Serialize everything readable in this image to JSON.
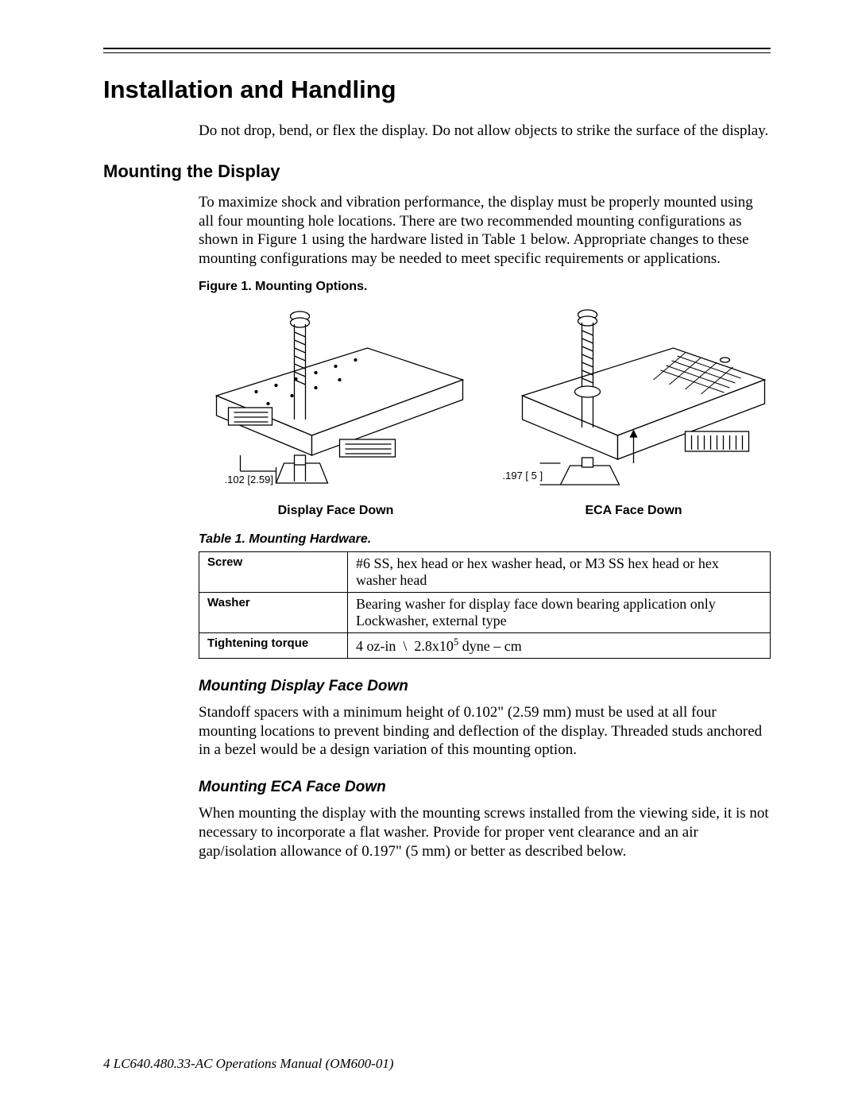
{
  "title": "Installation and Handling",
  "intro": "Do not drop, bend, or flex the display. Do not allow objects to strike the surface of the display.",
  "mounting_head": "Mounting the Display",
  "mounting_body": "To maximize shock and vibration performance, the display must be properly mounted using all four mounting hole locations. There are two recommended mounting configurations as shown in Figure 1 using the hardware listed in Table 1 below. Appropriate changes to these mounting configurations may be needed to meet specific requirements or applications.",
  "figure_caption": "Figure 1. Mounting Options.",
  "figure_left_label": "Display Face Down",
  "figure_right_label": "ECA Face Down",
  "figure_left_dim": ".102 [2.59]",
  "figure_right_dim": ".197 [ 5 ]",
  "table_caption": "Table 1. Mounting Hardware.",
  "table": {
    "rows": [
      {
        "k": "Screw",
        "v": "#6 SS, hex head or hex washer head, or M3 SS hex head or hex washer head"
      },
      {
        "k": "Washer",
        "v": "Bearing washer for display face down bearing application only Lockwasher, external type"
      },
      {
        "k": "Tightening torque",
        "v_html": "4 oz-in &nbsp;\\&nbsp; 2.8x10<sup>5</sup> dyne – cm"
      }
    ]
  },
  "sub1_head": "Mounting Display Face Down",
  "sub1_body": "Standoff spacers with a minimum height of 0.102\" (2.59 mm) must be used at all four mounting locations to prevent binding and deflection of the display. Threaded studs anchored in a bezel would be a design variation of this mounting option.",
  "sub2_head": "Mounting ECA Face Down",
  "sub2_body": "When mounting the display with the mounting screws installed from the viewing side, it is not necessary to incorporate a flat washer. Provide for proper vent clearance and an air gap/isolation allowance of  0.197\" (5 mm) or better as described below.",
  "footer": "4    LC640.480.33-AC Operations Manual (OM600-01)",
  "colors": {
    "text": "#000000",
    "bg": "#ffffff",
    "rule": "#000000",
    "diagram_stroke": "#000000",
    "diagram_fill": "#ffffff"
  },
  "fonts": {
    "heading_family": "Arial",
    "body_family": "Times New Roman",
    "title_size_pt": 24,
    "h2_size_pt": 17,
    "h3_size_pt": 14,
    "body_size_pt": 14,
    "caption_size_pt": 12
  }
}
